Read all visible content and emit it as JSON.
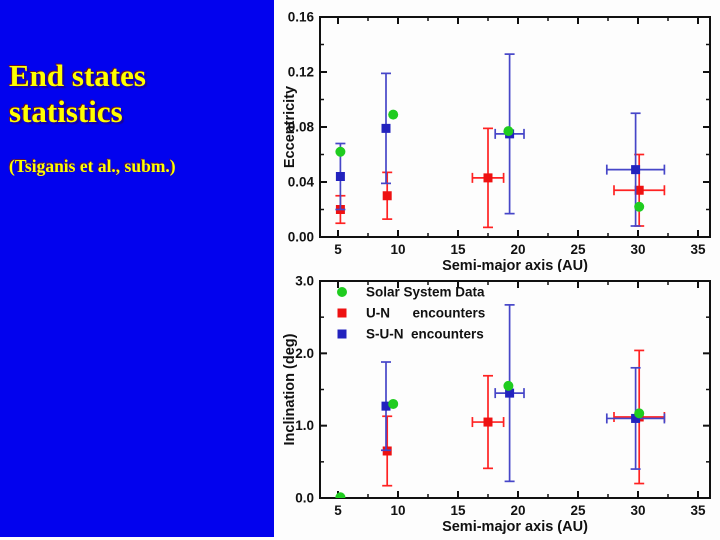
{
  "slide": {
    "title_line1": "End states",
    "title_line2": "statistics",
    "subtitle": "(Tsiganis et al., subm.)",
    "panel_color": "#0202EE",
    "title_color": "#FFFF00"
  },
  "chart_data": [
    {
      "type": "scatter",
      "title": "",
      "xlabel": "Semi-major axis (AU)",
      "ylabel": "Eccentricity",
      "xlim": [
        3.5,
        36.0
      ],
      "ylim": [
        0,
        0.16
      ],
      "xticks": [
        5,
        10,
        15,
        20,
        25,
        30,
        35
      ],
      "xtick_labels": [
        "5",
        "10",
        "15",
        "20",
        "25",
        "30",
        "35"
      ],
      "xminor": [
        7.5,
        12.5,
        17.5,
        22.5,
        27.5,
        32.5
      ],
      "yticks": [
        0,
        0.04,
        0.08,
        0.12,
        0.16
      ],
      "ytick_labels": [
        "0.00",
        "0.04",
        "0.08",
        "0.12",
        "0.16"
      ],
      "yminor": [
        0.02,
        0.06,
        0.1,
        0.14
      ],
      "grid": false,
      "legend": {
        "show": false
      },
      "series": [
        {
          "name": "Solar System Data",
          "marker": "circle",
          "color": "#1FCC1F",
          "points": [
            [
              5.2,
              0.062
            ],
            [
              9.6,
              0.089
            ],
            [
              19.2,
              0.077
            ],
            [
              30.1,
              0.022
            ]
          ]
        },
        {
          "name": "U-N encounters",
          "marker": "square",
          "color": "#EE1111",
          "bar_color": "#FF2222",
          "points": [
            [
              5.2,
              0.02
            ],
            [
              9.1,
              0.03
            ],
            [
              17.5,
              0.043
            ],
            [
              30.1,
              0.034
            ]
          ],
          "xerr": [
            0,
            0,
            1.3,
            2.1
          ],
          "yerr": [
            0.01,
            0.017,
            0.036,
            0.026
          ]
        },
        {
          "name": "S-U-N encounters",
          "marker": "square",
          "color": "#2222BE",
          "bar_color": "#4646C8",
          "points": [
            [
              5.2,
              0.044
            ],
            [
              9.0,
              0.079
            ],
            [
              19.3,
              0.075
            ],
            [
              29.8,
              0.049
            ]
          ],
          "xerr": [
            0,
            0,
            1.2,
            2.4
          ],
          "yerr": [
            0.024,
            0.04,
            0.058,
            0.041
          ]
        }
      ]
    },
    {
      "type": "scatter",
      "title": "",
      "xlabel": "Semi-major axis (AU)",
      "ylabel": "Inclination (deg)",
      "xlim": [
        3.5,
        36.0
      ],
      "ylim": [
        0,
        3.0
      ],
      "xticks": [
        5,
        10,
        15,
        20,
        25,
        30,
        35
      ],
      "xtick_labels": [
        "5",
        "10",
        "15",
        "20",
        "25",
        "30",
        "35"
      ],
      "xminor": [
        7.5,
        12.5,
        17.5,
        22.5,
        27.5,
        32.5
      ],
      "yticks": [
        0,
        1,
        2,
        3
      ],
      "ytick_labels": [
        "0.0",
        "1.0",
        "2.0",
        "3.0"
      ],
      "yminor": [
        0.5,
        1.5,
        2.5
      ],
      "grid": false,
      "legend": {
        "show": true,
        "labels": [
          "Solar System Data",
          "U-N      encounters",
          "S-U-N  encounters"
        ]
      },
      "series": [
        {
          "name": "Solar System Data",
          "marker": "circle",
          "color": "#1FCC1F",
          "points": [
            [
              5.2,
              0.01
            ],
            [
              9.6,
              1.3
            ],
            [
              19.2,
              1.55
            ],
            [
              30.1,
              1.17
            ]
          ]
        },
        {
          "name": "U-N encounters",
          "marker": "square",
          "color": "#EE1111",
          "bar_color": "#FF2222",
          "points": [
            [
              9.1,
              0.65
            ],
            [
              17.5,
              1.05
            ],
            [
              30.1,
              1.12
            ]
          ],
          "xerr": [
            0,
            1.3,
            2.1
          ],
          "yerr": [
            0.48,
            0.64,
            0.92
          ]
        },
        {
          "name": "S-U-N encounters",
          "marker": "square",
          "color": "#2222BE",
          "bar_color": "#4646C8",
          "points": [
            [
              9.0,
              1.27
            ],
            [
              19.3,
              1.45
            ],
            [
              29.8,
              1.1
            ]
          ],
          "xerr": [
            0,
            1.2,
            2.4
          ],
          "yerr": [
            0.61,
            1.22,
            0.7
          ]
        }
      ]
    }
  ]
}
